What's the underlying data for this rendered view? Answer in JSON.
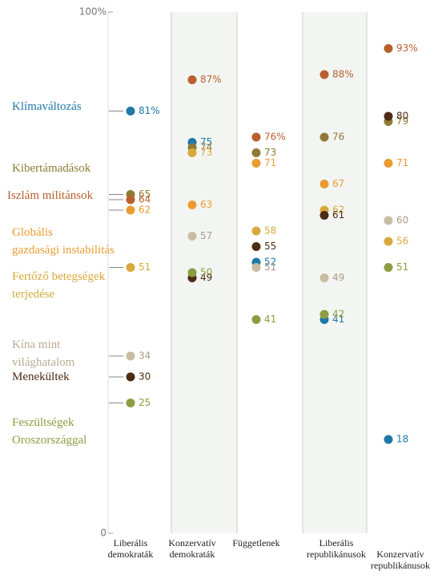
{
  "chart_data": {
    "type": "dot",
    "categories": [
      "Liberális\ndemokraták",
      "Konzervatív\ndemokraták",
      "Függetlenek",
      "Liberális\nrepublikánusok",
      "Konzervatív\nrepublikánusok"
    ],
    "ylim": [
      0,
      100
    ],
    "yticks": [
      0,
      {
        "value": 100,
        "label": "100%"
      }
    ],
    "series": [
      {
        "name": "Klímaváltozás",
        "color": "#1f78a8",
        "values": [
          81,
          75,
          52,
          41,
          18
        ],
        "value_labels": [
          "81%",
          "75",
          "52",
          "41",
          "18"
        ]
      },
      {
        "name": "Kibertámadások",
        "color": "#8f7a35",
        "values": [
          65,
          74,
          73,
          76,
          79
        ],
        "value_labels": [
          "65",
          "74",
          "73",
          "76",
          "79"
        ]
      },
      {
        "name": "Iszlám militánsok",
        "color": "#b8602c",
        "values": [
          64,
          87,
          76,
          88,
          93
        ],
        "value_labels": [
          "64",
          "87%",
          "76%",
          "88%",
          "93%"
        ]
      },
      {
        "name": "Globális\ngazdasági instabilitás",
        "color": "#eb9b32",
        "values": [
          62,
          63,
          71,
          67,
          71
        ],
        "value_labels": [
          "62",
          "63",
          "71",
          "67",
          "71"
        ]
      },
      {
        "name": "Fertőző betegségek\nterjedése",
        "color": "#d6a93c",
        "values": [
          51,
          73,
          58,
          62,
          56
        ],
        "value_labels": [
          "51",
          "73",
          "58",
          "62",
          "56"
        ]
      },
      {
        "name": "Kína mint\nvilághatalom",
        "color": "#c8bca2",
        "values": [
          34,
          57,
          51,
          49,
          60
        ],
        "value_labels": [
          "34",
          "57",
          "51",
          "49",
          "60"
        ]
      },
      {
        "name": "Menekültek",
        "color": "#4d2c15",
        "values": [
          30,
          49,
          55,
          61,
          80
        ],
        "value_labels": [
          "30",
          "49",
          "55",
          "61",
          "80"
        ]
      },
      {
        "name": "Feszültségek\nOroszországgal",
        "color": "#8c9c40",
        "values": [
          25,
          50,
          41,
          42,
          51
        ],
        "value_labels": [
          "25",
          "50",
          "41",
          "42",
          "51"
        ]
      }
    ]
  }
}
